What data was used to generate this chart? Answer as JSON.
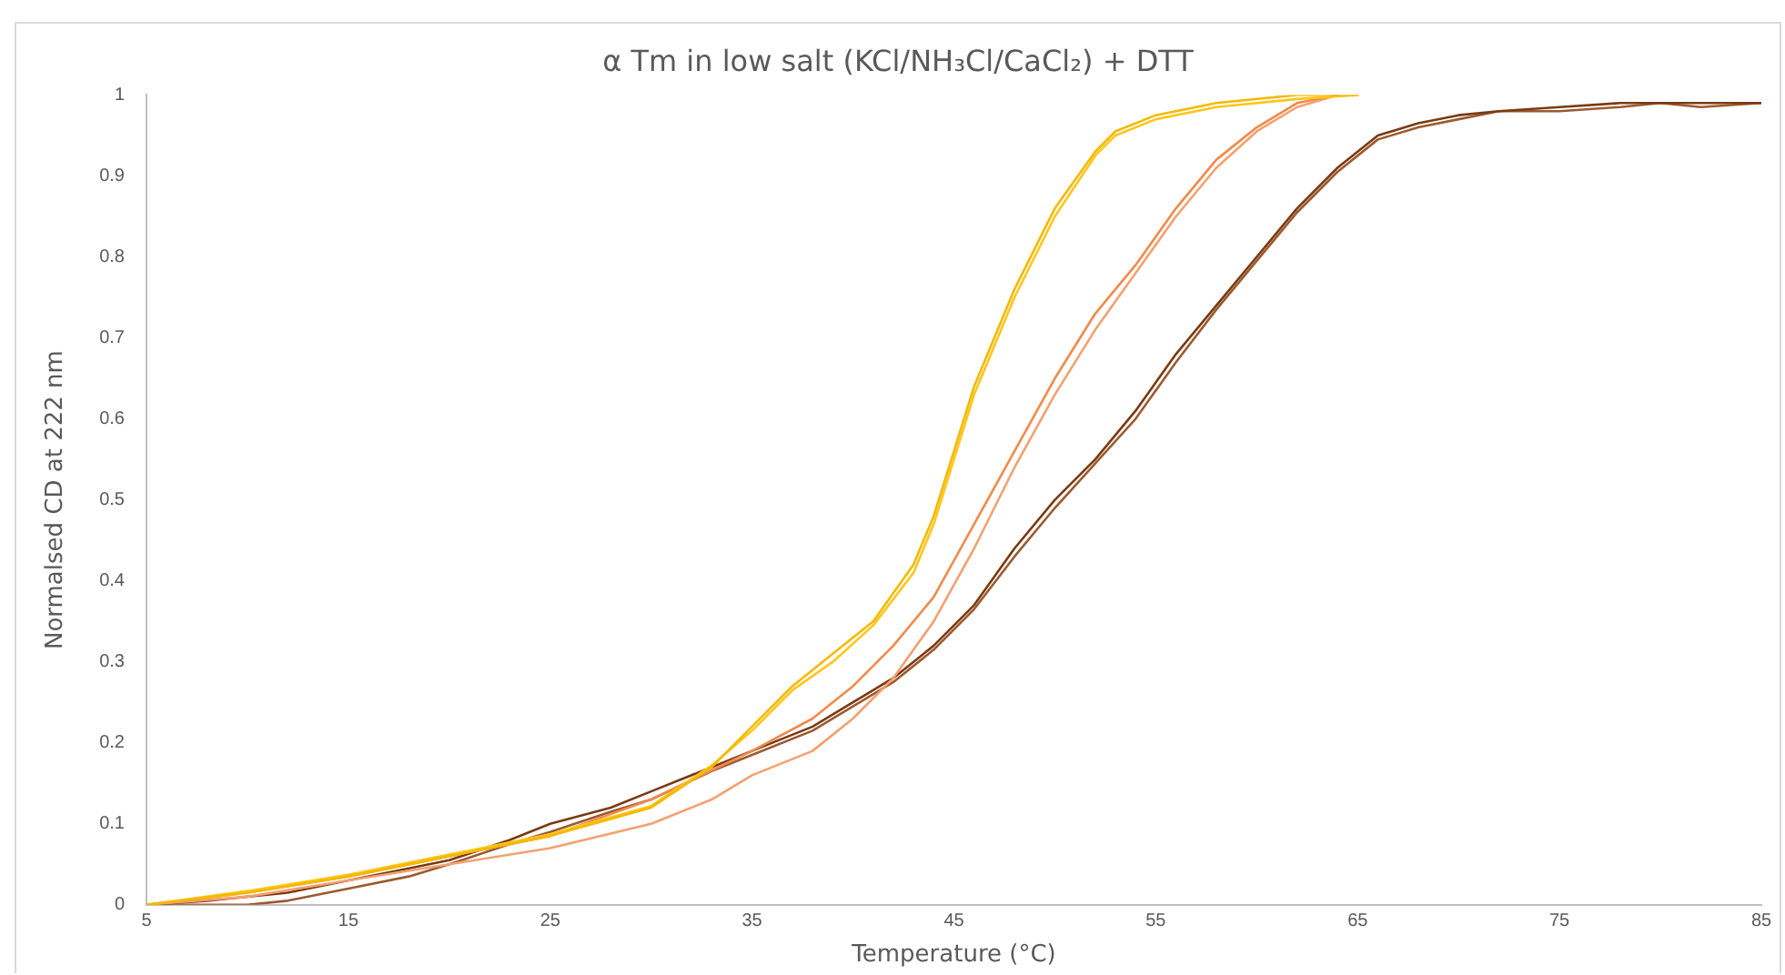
{
  "chart_data": {
    "type": "line",
    "title": "α Tm in low salt (KCl/NH₃Cl/CaCl₂) + DTT",
    "xlabel": "Temperature (°C)",
    "ylabel": "Normalsed CD at 222 nm",
    "xlim": [
      5,
      85
    ],
    "xticks": [
      5,
      15,
      25,
      35,
      45,
      55,
      65,
      75,
      85
    ],
    "ylim": [
      0,
      1
    ],
    "yticks": [
      0,
      0.1,
      0.2,
      0.3,
      0.4,
      0.5,
      0.6,
      0.7,
      0.8,
      0.9,
      1
    ],
    "grid": false,
    "legend": false,
    "marker": "none",
    "line_style": "solid",
    "series": [
      {
        "color": "#f5b800",
        "x": [
          5,
          10,
          15,
          20,
          25,
          30,
          33,
          35,
          37,
          39,
          41,
          43,
          44,
          45,
          46,
          47,
          48,
          49,
          50,
          52,
          53,
          55,
          58,
          62,
          65
        ],
        "values": [
          0,
          0.015,
          0.035,
          0.06,
          0.085,
          0.12,
          0.17,
          0.22,
          0.27,
          0.31,
          0.35,
          0.42,
          0.48,
          0.56,
          0.64,
          0.7,
          0.76,
          0.81,
          0.86,
          0.93,
          0.955,
          0.975,
          0.99,
          1,
          1
        ]
      },
      {
        "color": "#ffc61a",
        "x": [
          5,
          10,
          15,
          20,
          25,
          30,
          33,
          35,
          37,
          39,
          41,
          43,
          44,
          45,
          46,
          47,
          48,
          49,
          50,
          52,
          53,
          55,
          58,
          62,
          65
        ],
        "values": [
          0,
          0.017,
          0.037,
          0.062,
          0.087,
          0.122,
          0.172,
          0.215,
          0.265,
          0.3,
          0.345,
          0.41,
          0.47,
          0.55,
          0.63,
          0.69,
          0.75,
          0.8,
          0.85,
          0.925,
          0.95,
          0.97,
          0.985,
          0.995,
          1
        ]
      },
      {
        "color": "#f08a4b",
        "x": [
          5,
          10,
          15,
          20,
          25,
          30,
          35,
          38,
          40,
          42,
          44,
          46,
          48,
          50,
          52,
          54,
          56,
          58,
          60,
          62,
          64
        ],
        "values": [
          0,
          0.015,
          0.035,
          0.06,
          0.085,
          0.13,
          0.19,
          0.23,
          0.27,
          0.32,
          0.38,
          0.47,
          0.56,
          0.65,
          0.73,
          0.79,
          0.86,
          0.92,
          0.96,
          0.99,
          1
        ]
      },
      {
        "color": "#f4a070",
        "x": [
          5,
          10,
          15,
          20,
          25,
          30,
          33,
          35,
          38,
          40,
          42,
          44,
          46,
          48,
          50,
          52,
          54,
          56,
          58,
          60,
          62,
          64
        ],
        "values": [
          0,
          0.01,
          0.03,
          0.05,
          0.07,
          0.1,
          0.13,
          0.16,
          0.19,
          0.23,
          0.28,
          0.35,
          0.44,
          0.54,
          0.63,
          0.71,
          0.78,
          0.85,
          0.91,
          0.955,
          0.985,
          1
        ]
      },
      {
        "color": "#7a3a12",
        "x": [
          5,
          8,
          10,
          12,
          15,
          18,
          20,
          23,
          25,
          28,
          30,
          33,
          35,
          38,
          40,
          42,
          44,
          46,
          48,
          50,
          52,
          54,
          56,
          58,
          60,
          62,
          64,
          66,
          68,
          70,
          72,
          75,
          78,
          80,
          82,
          85
        ],
        "values": [
          0,
          0.005,
          0.01,
          0.015,
          0.03,
          0.045,
          0.055,
          0.08,
          0.1,
          0.12,
          0.14,
          0.17,
          0.19,
          0.22,
          0.25,
          0.28,
          0.32,
          0.37,
          0.44,
          0.5,
          0.55,
          0.61,
          0.68,
          0.74,
          0.8,
          0.86,
          0.91,
          0.95,
          0.965,
          0.975,
          0.98,
          0.985,
          0.99,
          0.99,
          0.99,
          0.99
        ]
      },
      {
        "color": "#9c5a30",
        "x": [
          5,
          10,
          12,
          15,
          18,
          20,
          23,
          25,
          28,
          30,
          33,
          35,
          38,
          40,
          42,
          44,
          46,
          48,
          50,
          52,
          54,
          56,
          58,
          60,
          62,
          64,
          66,
          68,
          70,
          72,
          75,
          78,
          80,
          82,
          85
        ],
        "values": [
          0,
          0,
          0.005,
          0.02,
          0.035,
          0.05,
          0.075,
          0.09,
          0.115,
          0.13,
          0.165,
          0.185,
          0.215,
          0.245,
          0.275,
          0.315,
          0.365,
          0.43,
          0.49,
          0.545,
          0.6,
          0.67,
          0.735,
          0.795,
          0.855,
          0.905,
          0.945,
          0.96,
          0.97,
          0.98,
          0.98,
          0.985,
          0.99,
          0.985,
          0.99
        ]
      }
    ]
  }
}
